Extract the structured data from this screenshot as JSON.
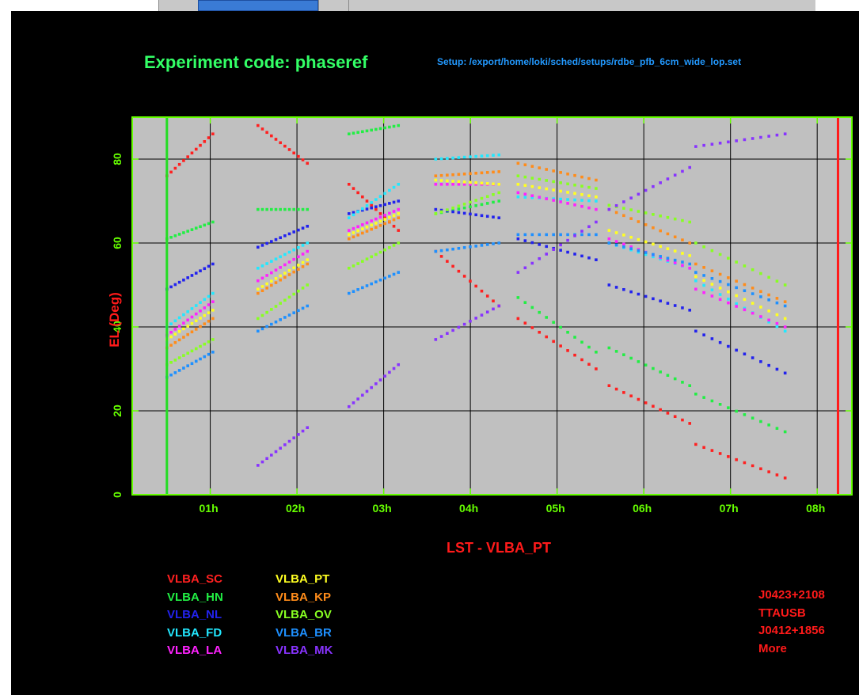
{
  "window": {
    "toolbar_segments": [
      "",
      "",
      "",
      "",
      ""
    ]
  },
  "header": {
    "experiment": "Experiment code: phaseref",
    "setup": "Setup: /export/home/loki/sched/setups/rdbe_pfb_6cm_wide_lop.set"
  },
  "colors": {
    "background": "#000000",
    "plot_area": "#c0c0c0",
    "frame": "#66ff00",
    "axis_label": "#ff1a1a",
    "tick_label": "#66ff00",
    "grid": "#000000"
  },
  "chart_data": {
    "type": "scatter",
    "title": "",
    "xlabel": "LST - VLBA_PT",
    "ylabel": "EL (Deg)",
    "xlim": [
      0.1,
      8.4
    ],
    "ylim": [
      0,
      90
    ],
    "grid": true,
    "x_ticks": [
      {
        "value": 1,
        "label": "01h"
      },
      {
        "value": 2,
        "label": "02h"
      },
      {
        "value": 3,
        "label": "03h"
      },
      {
        "value": 4,
        "label": "04h"
      },
      {
        "value": 5,
        "label": "05h"
      },
      {
        "value": 6,
        "label": "06h"
      },
      {
        "value": 7,
        "label": "07h"
      },
      {
        "value": 8,
        "label": "08h"
      }
    ],
    "y_ticks": [
      {
        "value": 0,
        "label": "0"
      },
      {
        "value": 20,
        "label": "20"
      },
      {
        "value": 40,
        "label": "40"
      },
      {
        "value": 60,
        "label": "60"
      },
      {
        "value": 80,
        "label": "80"
      }
    ],
    "markers": [
      {
        "x": 0.5,
        "color": "#22dd22"
      },
      {
        "x": 8.24,
        "color": "#ff1a1a"
      }
    ],
    "scan_windows": [
      [
        0.5,
        1.03
      ],
      [
        1.55,
        2.12
      ],
      [
        2.6,
        3.17
      ],
      [
        3.6,
        4.33
      ],
      [
        4.55,
        5.45
      ],
      [
        5.6,
        6.53
      ],
      [
        6.6,
        7.63
      ]
    ],
    "series": [
      {
        "name": "VLBA_SC",
        "color": "#ff2020",
        "segments": [
          [
            76,
            86
          ],
          [
            88,
            79
          ],
          [
            74,
            63
          ],
          [
            58,
            45
          ],
          [
            42,
            30
          ],
          [
            26,
            17
          ],
          [
            12,
            4
          ]
        ]
      },
      {
        "name": "VLBA_HN",
        "color": "#22ee44",
        "segments": [
          [
            61,
            65
          ],
          [
            68,
            68
          ],
          [
            86,
            88
          ],
          [
            67,
            70
          ],
          [
            47,
            34
          ],
          [
            35,
            26
          ],
          [
            24,
            15
          ]
        ]
      },
      {
        "name": "VLBA_NL",
        "color": "#2222ee",
        "segments": [
          [
            49,
            55
          ],
          [
            59,
            64
          ],
          [
            67,
            70
          ],
          [
            68,
            66
          ],
          [
            61,
            56
          ],
          [
            50,
            44
          ],
          [
            39,
            29
          ]
        ]
      },
      {
        "name": "VLBA_FD",
        "color": "#22e8ff",
        "segments": [
          [
            40,
            48
          ],
          [
            54,
            60
          ],
          [
            66,
            74
          ],
          [
            80,
            81
          ],
          [
            71,
            70
          ],
          [
            60,
            54
          ],
          [
            51,
            39
          ]
        ]
      },
      {
        "name": "VLBA_LA",
        "color": "#ff22ff",
        "segments": [
          [
            38,
            46
          ],
          [
            51,
            58
          ],
          [
            63,
            68
          ],
          [
            74,
            74
          ],
          [
            72,
            68
          ],
          [
            61,
            54
          ],
          [
            49,
            40
          ]
        ]
      },
      {
        "name": "VLBA_PT",
        "color": "#ffff22",
        "segments": [
          [
            37,
            44
          ],
          [
            49,
            56
          ],
          [
            62,
            67
          ],
          [
            75,
            74
          ],
          [
            74,
            71
          ],
          [
            63,
            57
          ],
          [
            52,
            42
          ]
        ]
      },
      {
        "name": "VLBA_KP",
        "color": "#ff8c1a",
        "segments": [
          [
            35,
            42
          ],
          [
            48,
            55
          ],
          [
            61,
            66
          ],
          [
            76,
            77
          ],
          [
            79,
            75
          ],
          [
            68,
            60
          ],
          [
            55,
            46
          ]
        ]
      },
      {
        "name": "VLBA_OV",
        "color": "#88ff22",
        "segments": [
          [
            31,
            37
          ],
          [
            42,
            50
          ],
          [
            54,
            60
          ],
          [
            67,
            72
          ],
          [
            76,
            73
          ],
          [
            69,
            65
          ],
          [
            60,
            50
          ]
        ]
      },
      {
        "name": "VLBA_BR",
        "color": "#1e90ff",
        "segments": [
          [
            28,
            34
          ],
          [
            39,
            45
          ],
          [
            48,
            53
          ],
          [
            58,
            60
          ],
          [
            62,
            62
          ],
          [
            60,
            55
          ],
          [
            53,
            45
          ]
        ]
      },
      {
        "name": "VLBA_MK",
        "color": "#8833ff",
        "segments": [
          [
            null,
            null
          ],
          [
            7,
            16
          ],
          [
            21,
            31
          ],
          [
            37,
            45
          ],
          [
            53,
            65
          ],
          [
            68,
            78
          ],
          [
            83,
            86
          ]
        ]
      }
    ]
  },
  "legend": {
    "col1": [
      "VLBA_SC",
      "VLBA_HN",
      "VLBA_NL",
      "VLBA_FD",
      "VLBA_LA"
    ],
    "col2": [
      "VLBA_PT",
      "VLBA_KP",
      "VLBA_OV",
      "VLBA_BR",
      "VLBA_MK"
    ],
    "col1_colors": [
      "#ff2020",
      "#22ee44",
      "#2222ee",
      "#22e8ff",
      "#ff22ff"
    ],
    "col2_colors": [
      "#ffff22",
      "#ff8c1a",
      "#88ff22",
      "#1e90ff",
      "#8833ff"
    ]
  },
  "sources": [
    "J0423+2108",
    "TTAUSB",
    "J0412+1856",
    "More"
  ]
}
